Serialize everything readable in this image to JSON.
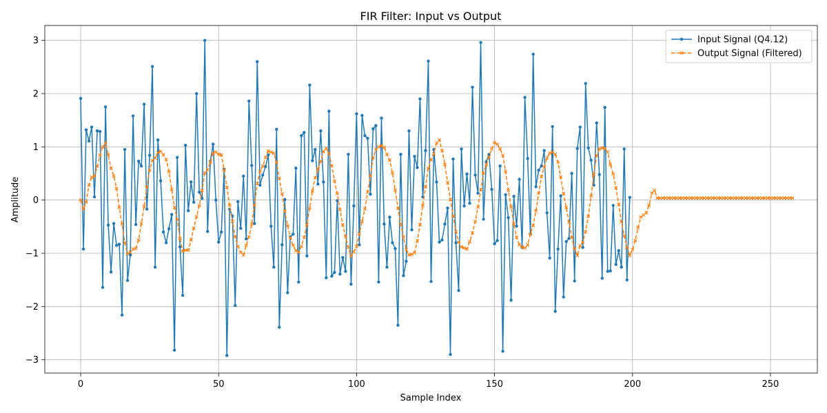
{
  "chart_data": {
    "type": "line",
    "title": "FIR Filter: Input vs Output",
    "xlabel": "Sample Index",
    "ylabel": "Amplitude",
    "xlim": [
      -13,
      267
    ],
    "ylim": [
      -3.25,
      3.28
    ],
    "xticks": [
      0,
      50,
      100,
      150,
      200,
      250
    ],
    "yticks": [
      -3,
      -2,
      -1,
      0,
      1,
      2,
      3
    ],
    "xtick_labels": [
      "0",
      "50",
      "100",
      "150",
      "200",
      "250"
    ],
    "ytick_labels": [
      "−3",
      "−2",
      "−1",
      "0",
      "1",
      "2",
      "3"
    ],
    "grid": true,
    "legend_position": "top-right",
    "series": [
      {
        "name": "Input Signal (Q4.12)",
        "color": "#1f77b4",
        "style": "solid",
        "marker": "dot",
        "x_start": 0,
        "values": [
          1.91,
          -0.92,
          1.32,
          1.11,
          1.37,
          0.06,
          1.3,
          1.29,
          -1.64,
          1.75,
          -0.47,
          -1.35,
          -0.44,
          -0.85,
          -0.83,
          -2.16,
          0.95,
          -1.51,
          -1.03,
          1.58,
          -0.46,
          0.73,
          0.64,
          1.8,
          -0.17,
          0.84,
          2.51,
          -1.26,
          1.13,
          0.36,
          -0.6,
          -0.8,
          -0.54,
          -0.27,
          -2.82,
          0.8,
          -0.88,
          -1.79,
          1.03,
          -0.2,
          0.34,
          -0.04,
          2.0,
          0.15,
          0.03,
          3.0,
          -0.59,
          0.73,
          1.05,
          0.0,
          -0.79,
          -0.6,
          0.58,
          -2.92,
          -0.17,
          -0.3,
          -1.98,
          -0.03,
          -0.53,
          0.45,
          -0.73,
          1.86,
          0.65,
          -0.44,
          2.6,
          0.28,
          0.47,
          0.63,
          0.85,
          -0.49,
          -1.26,
          1.33,
          -2.39,
          -0.84,
          0.01,
          -1.74,
          -0.69,
          -0.64,
          0.6,
          -1.54,
          1.21,
          1.27,
          -1.05,
          2.16,
          0.74,
          0.95,
          0.3,
          1.3,
          0.34,
          -1.46,
          1.67,
          -1.43,
          -1.36,
          -0.01,
          -1.39,
          -1.08,
          -1.34,
          0.86,
          -1.58,
          -0.11,
          1.62,
          -0.84,
          1.59,
          1.21,
          1.16,
          0.11,
          1.34,
          1.4,
          -1.54,
          1.54,
          -0.45,
          -1.26,
          -0.32,
          -0.8,
          -0.91,
          -2.35,
          0.86,
          -1.42,
          -1.15,
          1.3,
          -0.56,
          0.82,
          0.61,
          1.9,
          0.06,
          0.93,
          2.61,
          -1.53,
          0.95,
          0.34,
          -0.79,
          -0.75,
          -0.45,
          -0.15,
          -2.9,
          0.77,
          -0.8,
          -1.7,
          0.96,
          -0.11,
          0.49,
          -0.06,
          2.12,
          0.47,
          0.13,
          2.96,
          -0.36,
          0.72,
          0.86,
          0.2,
          -0.82,
          -0.76,
          0.64,
          -2.84,
          0.1,
          -0.33,
          -1.88,
          0.07,
          -0.49,
          0.39,
          -0.89,
          1.93,
          0.78,
          -0.64,
          2.74,
          0.25,
          0.56,
          0.64,
          0.93,
          -0.24,
          -1.09,
          1.38,
          -2.09,
          -0.92,
          0.08,
          -1.82,
          -0.78,
          -0.72,
          0.5,
          -1.52,
          0.97,
          1.37,
          -0.89,
          2.19,
          0.98,
          0.75,
          0.28,
          1.45,
          0.48,
          -1.47,
          1.74,
          -1.34,
          -1.33,
          -0.1,
          -1.21,
          -0.95,
          -1.26,
          0.96,
          -1.5,
          0.05
        ]
      },
      {
        "name": "Output Signal (Filtered)",
        "color": "#ff7f0e",
        "style": "dashed",
        "marker": "x",
        "x_start": 0,
        "values": [
          0.0,
          -0.17,
          -0.04,
          0.28,
          0.43,
          0.45,
          0.63,
          0.84,
          1.0,
          1.07,
          0.85,
          0.6,
          0.45,
          0.22,
          -0.14,
          -0.45,
          -0.8,
          -1.01,
          -0.98,
          -0.92,
          -0.91,
          -0.75,
          -0.44,
          -0.12,
          0.25,
          0.57,
          0.74,
          0.79,
          0.89,
          0.91,
          0.85,
          0.76,
          0.53,
          0.2,
          -0.14,
          -0.37,
          -0.72,
          -0.96,
          -0.94,
          -0.94,
          -0.75,
          -0.53,
          -0.31,
          -0.1,
          0.18,
          0.51,
          0.57,
          0.71,
          0.88,
          0.9,
          0.86,
          0.85,
          0.57,
          0.24,
          -0.1,
          -0.4,
          -0.69,
          -0.87,
          -0.98,
          -1.03,
          -0.85,
          -0.69,
          -0.45,
          -0.1,
          0.31,
          0.54,
          0.64,
          0.8,
          0.92,
          0.9,
          0.88,
          0.71,
          0.41,
          0.12,
          -0.21,
          -0.48,
          -0.71,
          -0.85,
          -0.95,
          -0.98,
          -0.87,
          -0.7,
          -0.46,
          -0.15,
          0.17,
          0.42,
          0.58,
          0.73,
          0.91,
          0.97,
          0.88,
          0.64,
          0.36,
          0.12,
          -0.18,
          -0.47,
          -0.69,
          -0.89,
          -1.05,
          -0.97,
          -0.87,
          -0.63,
          -0.4,
          -0.17,
          0.15,
          0.45,
          0.8,
          0.95,
          1.0,
          1.02,
          0.99,
          0.86,
          0.75,
          0.51,
          0.19,
          -0.15,
          -0.45,
          -0.7,
          -0.93,
          -1.03,
          -1.02,
          -0.99,
          -0.77,
          -0.46,
          -0.1,
          0.25,
          0.6,
          0.76,
          0.87,
          1.07,
          1.13,
          0.93,
          0.67,
          0.33,
          0.01,
          -0.3,
          -0.59,
          -0.79,
          -0.88,
          -0.9,
          -0.92,
          -0.78,
          -0.62,
          -0.4,
          -0.13,
          0.2,
          0.51,
          0.66,
          0.81,
          0.96,
          1.08,
          1.05,
          0.96,
          0.84,
          0.54,
          0.18,
          -0.13,
          -0.45,
          -0.7,
          -0.84,
          -0.88,
          -0.9,
          -0.84,
          -0.64,
          -0.48,
          -0.2,
          0.13,
          0.44,
          0.62,
          0.79,
          0.88,
          0.9,
          0.86,
          0.71,
          0.43,
          0.12,
          -0.14,
          -0.42,
          -0.7,
          -0.92,
          -1.04,
          -0.86,
          -0.79,
          -0.59,
          -0.3,
          0.08,
          0.48,
          0.84,
          0.96,
          0.98,
          0.97,
          0.9,
          0.67,
          0.49,
          0.23,
          -0.08,
          -0.41,
          -0.67,
          -0.88,
          -1.04,
          -0.93,
          -0.76,
          -0.52,
          -0.32,
          -0.28,
          -0.24,
          -0.1,
          0.13,
          0.18,
          0.04,
          0.04,
          0.04,
          0.04,
          0.04,
          0.04,
          0.04,
          0.04,
          0.04,
          0.04,
          0.04,
          0.04,
          0.04,
          0.04,
          0.04,
          0.04,
          0.04,
          0.04,
          0.04,
          0.04,
          0.04,
          0.04,
          0.04,
          0.04,
          0.04,
          0.04,
          0.04,
          0.04,
          0.04,
          0.04,
          0.04,
          0.04,
          0.04,
          0.04,
          0.04,
          0.04,
          0.04,
          0.04,
          0.04,
          0.04,
          0.04,
          0.04,
          0.04,
          0.04,
          0.04,
          0.04,
          0.04,
          0.04,
          0.04,
          0.04
        ]
      }
    ]
  }
}
